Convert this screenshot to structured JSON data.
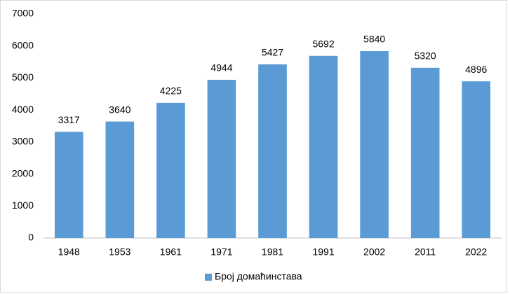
{
  "chart_data": {
    "type": "bar",
    "categories": [
      "1948",
      "1953",
      "1961",
      "1971",
      "1981",
      "1991",
      "2002",
      "2011",
      "2022"
    ],
    "series": [
      {
        "name": "Број домаћинстава",
        "color": "#5b9bd5",
        "values": [
          3317,
          3640,
          4225,
          4944,
          5427,
          5692,
          5840,
          5320,
          4896
        ]
      }
    ],
    "ylim": [
      0,
      7000
    ],
    "yticks": [
      0,
      1000,
      2000,
      3000,
      4000,
      5000,
      6000,
      7000
    ],
    "grid": false,
    "legend": "bottom"
  }
}
